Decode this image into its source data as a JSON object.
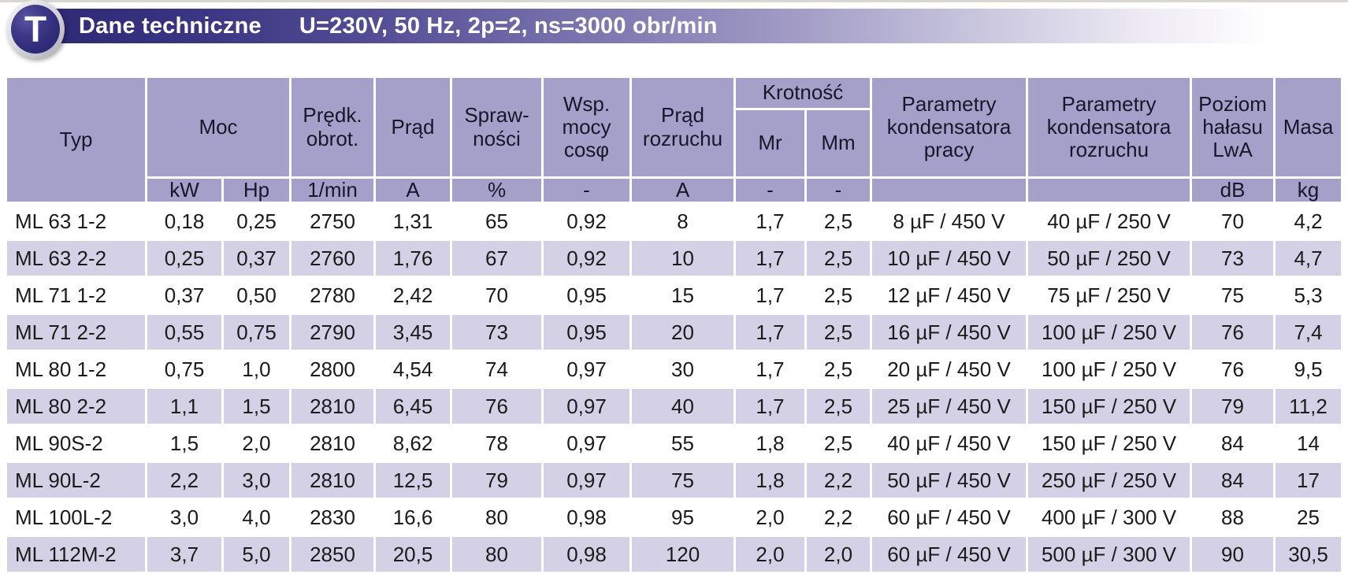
{
  "header_bar": {
    "badge_letter": "T",
    "title": "Dane techniczne",
    "conditions": "U=230V, 50 Hz, 2p=2, ns=3000 obr/min"
  },
  "table": {
    "header": {
      "typ": "Typ",
      "moc": "Moc",
      "predk_obrot": "Prędk.\nobrot.",
      "prad": "Prąd",
      "sprawnosci": "Spraw-\nności",
      "wsp_mocy": "Wsp.\nmocy\ncosφ",
      "prad_rozruchu": "Prąd\nrozruchu",
      "krotnosc": "Krotność",
      "mr": "Mr",
      "mm": "Mm",
      "param_pracy": "Parametry\nkondensatora\npracy",
      "param_rozruchu": "Parametry\nkondensatora\nrozruchu",
      "poziom_halasu": "Poziom\nhałasu\nLwA",
      "masa": "Masa"
    },
    "units": [
      "kW",
      "Hp",
      "1/min",
      "A",
      "%",
      "-",
      "A",
      "-",
      "-",
      "",
      "",
      "dB",
      "kg"
    ],
    "rows": [
      [
        "ML 63 1-2",
        "0,18",
        "0,25",
        "2750",
        "1,31",
        "65",
        "0,92",
        "8",
        "1,7",
        "2,5",
        "8 µF / 450 V",
        "40 µF / 250 V",
        "70",
        "4,2"
      ],
      [
        "ML 63 2-2",
        "0,25",
        "0,37",
        "2760",
        "1,76",
        "67",
        "0,92",
        "10",
        "1,7",
        "2,5",
        "10 µF / 450 V",
        "50 µF / 250 V",
        "73",
        "4,7"
      ],
      [
        "ML 71 1-2",
        "0,37",
        "0,50",
        "2780",
        "2,42",
        "70",
        "0,95",
        "15",
        "1,7",
        "2,5",
        "12 µF / 450 V",
        "75 µF / 250 V",
        "75",
        "5,3"
      ],
      [
        "ML 71 2-2",
        "0,55",
        "0,75",
        "2790",
        "3,45",
        "73",
        "0,95",
        "20",
        "1,7",
        "2,5",
        "16 µF / 450 V",
        "100 µF / 250 V",
        "76",
        "7,4"
      ],
      [
        "ML 80 1-2",
        "0,75",
        "1,0",
        "2800",
        "4,54",
        "74",
        "0,97",
        "30",
        "1,7",
        "2,5",
        "20 µF / 450 V",
        "100 µF / 250 V",
        "76",
        "9,5"
      ],
      [
        "ML 80 2-2",
        "1,1",
        "1,5",
        "2810",
        "6,45",
        "76",
        "0,97",
        "40",
        "1,7",
        "2,5",
        "25 µF / 450 V",
        "150 µF / 250 V",
        "79",
        "11,2"
      ],
      [
        "ML 90S-2",
        "1,5",
        "2,0",
        "2810",
        "8,62",
        "78",
        "0,97",
        "55",
        "1,8",
        "2,5",
        "40 µF / 450 V",
        "150 µF / 250 V",
        "84",
        "14"
      ],
      [
        "ML 90L-2",
        "2,2",
        "3,0",
        "2810",
        "12,5",
        "79",
        "0,97",
        "75",
        "1,8",
        "2,2",
        "50 µF / 450 V",
        "250 µF / 250 V",
        "84",
        "17"
      ],
      [
        "ML 100L-2",
        "3,0",
        "4,0",
        "2830",
        "16,6",
        "80",
        "0,98",
        "95",
        "2,0",
        "2,2",
        "60 µF / 450 V",
        "400 µF / 300 V",
        "88",
        "25"
      ],
      [
        "ML 112M-2",
        "3,7",
        "5,0",
        "2850",
        "20,5",
        "80",
        "0,98",
        "120",
        "2,0",
        "2,0",
        "60 µF / 450 V",
        "500 µF / 300 V",
        "90",
        "30,5"
      ]
    ]
  },
  "colors": {
    "bar_gradient_start": "#2d2974",
    "header_cell": "#a5a0c9",
    "stripe_row": "#d4d1e6",
    "badge_fill": "#2e2a76",
    "title_text": "#ffffff"
  }
}
